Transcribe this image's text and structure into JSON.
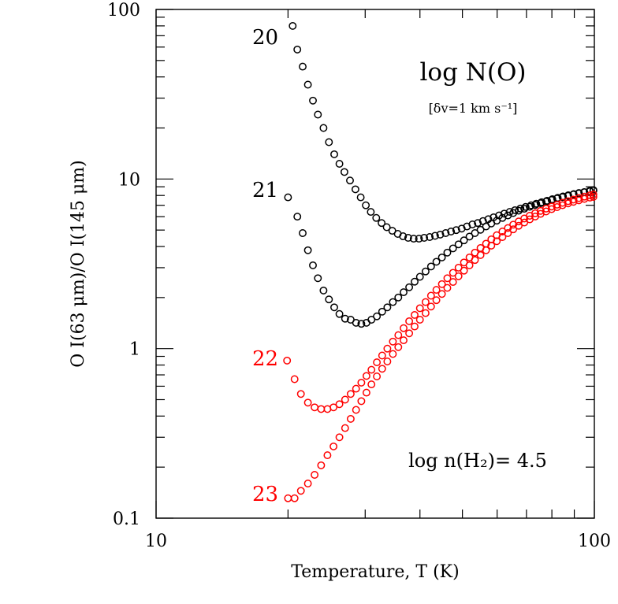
{
  "chart_data": {
    "type": "scatter",
    "xscale": "log",
    "yscale": "log",
    "xlim": [
      10,
      100
    ],
    "ylim": [
      0.1,
      100
    ],
    "xticks": [
      "10",
      "100"
    ],
    "yticks": [
      "0.1",
      "1",
      "10",
      "100"
    ],
    "xlabel": "Temperature, T (K)",
    "ylabel": "O I(63 μm)/O I(145 μm)",
    "grid": false,
    "annotations": {
      "legend_title": "log N(O)",
      "legend_sub": "[δv=1 km s⁻¹]",
      "density": "log n(H₂)= 4.5"
    },
    "colors": {
      "black_series": "#000000",
      "red_series": "#ff0000"
    },
    "series": [
      {
        "name": "20",
        "color": "#000000",
        "points": [
          [
            20.5,
            80
          ],
          [
            21,
            58
          ],
          [
            21.6,
            46
          ],
          [
            22.2,
            36
          ],
          [
            22.8,
            29
          ],
          [
            23.4,
            24
          ],
          [
            24.1,
            20
          ],
          [
            24.8,
            16.5
          ],
          [
            25.5,
            14
          ],
          [
            26.2,
            12.3
          ],
          [
            26.9,
            11
          ],
          [
            27.7,
            9.8
          ],
          [
            28.5,
            8.7
          ],
          [
            29.3,
            7.8
          ],
          [
            30.1,
            7
          ],
          [
            30.9,
            6.4
          ],
          [
            31.8,
            5.9
          ],
          [
            32.7,
            5.5
          ],
          [
            33.6,
            5.2
          ],
          [
            34.6,
            4.95
          ],
          [
            35.6,
            4.75
          ],
          [
            36.6,
            4.6
          ],
          [
            37.6,
            4.5
          ],
          [
            38.7,
            4.45
          ],
          [
            39.8,
            4.45
          ],
          [
            40.9,
            4.5
          ],
          [
            42.1,
            4.55
          ],
          [
            43.3,
            4.62
          ],
          [
            44.5,
            4.7
          ],
          [
            45.8,
            4.8
          ],
          [
            47.1,
            4.9
          ],
          [
            48.4,
            5
          ],
          [
            49.8,
            5.1
          ],
          [
            51.2,
            5.25
          ],
          [
            52.7,
            5.4
          ],
          [
            54.2,
            5.5
          ],
          [
            55.7,
            5.65
          ],
          [
            57.3,
            5.8
          ],
          [
            58.9,
            5.95
          ],
          [
            60.6,
            6.1
          ],
          [
            62.3,
            6.25
          ],
          [
            64.1,
            6.4
          ],
          [
            65.9,
            6.55
          ],
          [
            67.8,
            6.7
          ],
          [
            69.7,
            6.85
          ],
          [
            71.7,
            7
          ],
          [
            73.7,
            7.15
          ],
          [
            75.8,
            7.3
          ],
          [
            78,
            7.45
          ],
          [
            80.2,
            7.6
          ],
          [
            82.5,
            7.75
          ],
          [
            84.8,
            7.9
          ],
          [
            87.2,
            8.02
          ],
          [
            89.7,
            8.15
          ],
          [
            92.2,
            8.27
          ],
          [
            94.8,
            8.38
          ],
          [
            97.5,
            8.5
          ],
          [
            99.5,
            8.6
          ]
        ]
      },
      {
        "name": "21",
        "color": "#000000",
        "points": [
          [
            20,
            7.8
          ],
          [
            21,
            6
          ],
          [
            21.6,
            4.8
          ],
          [
            22.2,
            3.8
          ],
          [
            22.8,
            3.1
          ],
          [
            23.4,
            2.6
          ],
          [
            24.1,
            2.2
          ],
          [
            24.8,
            1.95
          ],
          [
            25.5,
            1.75
          ],
          [
            26.2,
            1.6
          ],
          [
            27,
            1.5
          ],
          [
            27.8,
            1.48
          ],
          [
            28.6,
            1.42
          ],
          [
            29.4,
            1.4
          ],
          [
            30.2,
            1.42
          ],
          [
            31,
            1.48
          ],
          [
            31.9,
            1.55
          ],
          [
            32.8,
            1.65
          ],
          [
            33.7,
            1.75
          ],
          [
            34.7,
            1.88
          ],
          [
            35.7,
            2
          ],
          [
            36.7,
            2.15
          ],
          [
            37.8,
            2.3
          ],
          [
            38.9,
            2.48
          ],
          [
            40,
            2.65
          ],
          [
            41.2,
            2.85
          ],
          [
            42.4,
            3.05
          ],
          [
            43.6,
            3.25
          ],
          [
            44.9,
            3.45
          ],
          [
            46.2,
            3.68
          ],
          [
            47.6,
            3.9
          ],
          [
            49,
            4.12
          ],
          [
            50.4,
            4.35
          ],
          [
            51.9,
            4.58
          ],
          [
            53.4,
            4.8
          ],
          [
            55,
            5.02
          ],
          [
            56.6,
            5.25
          ],
          [
            58.2,
            5.47
          ],
          [
            59.9,
            5.68
          ],
          [
            61.7,
            5.9
          ],
          [
            63.5,
            6.1
          ],
          [
            65.3,
            6.3
          ],
          [
            67.2,
            6.5
          ],
          [
            69.2,
            6.68
          ],
          [
            71.2,
            6.86
          ],
          [
            73.3,
            7.03
          ],
          [
            75.4,
            7.2
          ],
          [
            77.6,
            7.36
          ],
          [
            79.9,
            7.52
          ],
          [
            82.2,
            7.67
          ],
          [
            84.6,
            7.82
          ],
          [
            87.1,
            7.96
          ],
          [
            89.6,
            8.1
          ],
          [
            92.2,
            8.23
          ],
          [
            94.9,
            8.36
          ],
          [
            97.7,
            8.48
          ],
          [
            99.5,
            8.55
          ]
        ]
      },
      {
        "name": "22",
        "color": "#ff0000",
        "points": [
          [
            19.9,
            0.85
          ],
          [
            20.7,
            0.66
          ],
          [
            21.4,
            0.54
          ],
          [
            22.2,
            0.48
          ],
          [
            23,
            0.45
          ],
          [
            23.8,
            0.44
          ],
          [
            24.6,
            0.44
          ],
          [
            25.4,
            0.45
          ],
          [
            26.2,
            0.47
          ],
          [
            27,
            0.5
          ],
          [
            27.8,
            0.54
          ],
          [
            28.6,
            0.58
          ],
          [
            29.4,
            0.63
          ],
          [
            30.2,
            0.69
          ],
          [
            31,
            0.75
          ],
          [
            31.9,
            0.83
          ],
          [
            32.8,
            0.91
          ],
          [
            33.7,
            1
          ],
          [
            34.7,
            1.1
          ],
          [
            35.7,
            1.2
          ],
          [
            36.7,
            1.32
          ],
          [
            37.8,
            1.45
          ],
          [
            38.9,
            1.58
          ],
          [
            40,
            1.73
          ],
          [
            41.2,
            1.88
          ],
          [
            42.4,
            2.05
          ],
          [
            43.6,
            2.22
          ],
          [
            44.9,
            2.4
          ],
          [
            46.2,
            2.6
          ],
          [
            47.6,
            2.8
          ],
          [
            49,
            3
          ],
          [
            50.4,
            3.22
          ],
          [
            51.9,
            3.45
          ],
          [
            53.4,
            3.68
          ],
          [
            55,
            3.92
          ],
          [
            56.6,
            4.16
          ],
          [
            58.2,
            4.41
          ],
          [
            59.9,
            4.66
          ],
          [
            61.7,
            4.9
          ],
          [
            63.5,
            5.14
          ],
          [
            65.3,
            5.38
          ],
          [
            67.2,
            5.62
          ],
          [
            69.2,
            5.85
          ],
          [
            71.2,
            6.07
          ],
          [
            73.3,
            6.28
          ],
          [
            75.4,
            6.49
          ],
          [
            77.6,
            6.69
          ],
          [
            79.9,
            6.88
          ],
          [
            82.2,
            7.06
          ],
          [
            84.6,
            7.24
          ],
          [
            87.1,
            7.41
          ],
          [
            89.6,
            7.57
          ],
          [
            92.2,
            7.72
          ],
          [
            94.9,
            7.87
          ],
          [
            97.7,
            8.01
          ],
          [
            99.5,
            8.1
          ]
        ]
      },
      {
        "name": "23",
        "color": "#ff0000",
        "points": [
          [
            20,
            0.131
          ],
          [
            20.7,
            0.131
          ],
          [
            21.4,
            0.145
          ],
          [
            22.2,
            0.16
          ],
          [
            23,
            0.18
          ],
          [
            23.8,
            0.205
          ],
          [
            24.6,
            0.235
          ],
          [
            25.4,
            0.265
          ],
          [
            26.2,
            0.3
          ],
          [
            27,
            0.34
          ],
          [
            27.8,
            0.385
          ],
          [
            28.6,
            0.435
          ],
          [
            29.4,
            0.49
          ],
          [
            30.2,
            0.55
          ],
          [
            31,
            0.615
          ],
          [
            31.9,
            0.685
          ],
          [
            32.8,
            0.76
          ],
          [
            33.7,
            0.84
          ],
          [
            34.7,
            0.93
          ],
          [
            35.7,
            1.02
          ],
          [
            36.7,
            1.12
          ],
          [
            37.8,
            1.23
          ],
          [
            38.9,
            1.35
          ],
          [
            40,
            1.48
          ],
          [
            41.2,
            1.62
          ],
          [
            42.4,
            1.77
          ],
          [
            43.6,
            1.93
          ],
          [
            44.9,
            2.1
          ],
          [
            46.2,
            2.28
          ],
          [
            47.6,
            2.47
          ],
          [
            49,
            2.67
          ],
          [
            50.4,
            2.88
          ],
          [
            51.9,
            3.1
          ],
          [
            53.4,
            3.33
          ],
          [
            55,
            3.56
          ],
          [
            56.6,
            3.8
          ],
          [
            58.2,
            4.05
          ],
          [
            59.9,
            4.3
          ],
          [
            61.7,
            4.55
          ],
          [
            63.5,
            4.8
          ],
          [
            65.3,
            5.05
          ],
          [
            67.2,
            5.3
          ],
          [
            69.2,
            5.54
          ],
          [
            71.2,
            5.78
          ],
          [
            73.3,
            6.01
          ],
          [
            75.4,
            6.23
          ],
          [
            77.6,
            6.44
          ],
          [
            79.9,
            6.64
          ],
          [
            82.2,
            6.83
          ],
          [
            84.6,
            7.01
          ],
          [
            87.1,
            7.18
          ],
          [
            89.6,
            7.34
          ],
          [
            92.2,
            7.49
          ],
          [
            94.9,
            7.63
          ],
          [
            97.7,
            7.77
          ],
          [
            99.5,
            7.85
          ]
        ]
      }
    ]
  }
}
